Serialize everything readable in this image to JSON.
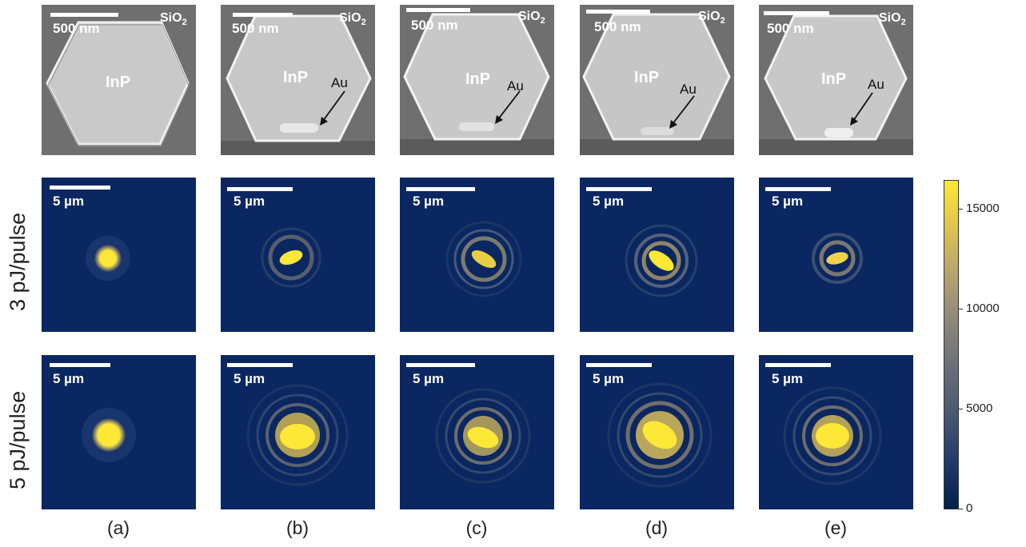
{
  "figure": {
    "sem_row": {
      "scale_label": "500 nm",
      "substrate_label": "SiO",
      "substrate_subscript": "2",
      "nanowire_label": "InP",
      "particle_label": "Au"
    },
    "pl_row": {
      "scale_label": "5 µm"
    },
    "row_labels": [
      "3 pJ/pulse",
      "5 pJ/pulse"
    ],
    "column_labels": [
      "(a)",
      "(b)",
      "(c)",
      "(d)",
      "(e)"
    ],
    "colorbar": {
      "ticks": [
        "0",
        "5000",
        "10000",
        "15000"
      ],
      "tick_values": [
        0,
        5000,
        10000,
        15000
      ],
      "max": 16500,
      "colormap": "cividis"
    },
    "colors": {
      "pl_background": "#0b2761",
      "pl_peak": "#fde737",
      "sem_background": "#6f6f6f"
    }
  }
}
